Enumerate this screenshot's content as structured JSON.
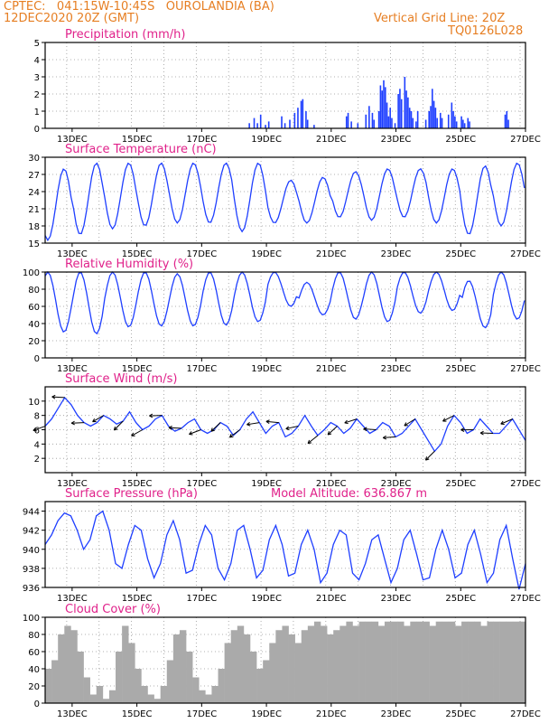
{
  "header": {
    "line1_left": "CPTEC:   041:15W-10:45S   OUROLANDIA (BA)",
    "line2_left": "12DEC2020 20Z (GMT)",
    "line1_right": "Vertical Grid Line: 20Z",
    "line2_right": "TQ0126L028"
  },
  "colors": {
    "header": "#e67e22",
    "title": "#e0218a",
    "series": "#1f3fff",
    "cloud": "#aaaaaa",
    "wind_arrow": "#000000"
  },
  "chart_data": [
    {
      "type": "bar",
      "title": "Precipitation (mm/h)",
      "x_ticks": [
        "13DEC",
        "15DEC",
        "17DEC",
        "19DEC",
        "21DEC",
        "23DEC",
        "25DEC",
        "27DEC"
      ],
      "ylim": [
        0,
        5
      ],
      "y_ticks": [
        0,
        1,
        2,
        3,
        4,
        5
      ],
      "grid": true,
      "values": [
        [
          5.95,
          0.3
        ],
        [
          6.1,
          0.6
        ],
        [
          6.2,
          0.3
        ],
        [
          6.3,
          0.8
        ],
        [
          6.45,
          0.2
        ],
        [
          6.55,
          0.4
        ],
        [
          6.95,
          0.7
        ],
        [
          7.05,
          0.3
        ],
        [
          7.2,
          0.5
        ],
        [
          7.35,
          0.9
        ],
        [
          7.45,
          1.2
        ],
        [
          7.55,
          1.6
        ],
        [
          7.6,
          1.7
        ],
        [
          7.7,
          1.0
        ],
        [
          7.75,
          0.5
        ],
        [
          7.95,
          0.2
        ],
        [
          8.95,
          0.7
        ],
        [
          9.0,
          0.9
        ],
        [
          9.1,
          0.4
        ],
        [
          9.3,
          0.3
        ],
        [
          9.55,
          0.8
        ],
        [
          9.65,
          1.3
        ],
        [
          9.75,
          0.9
        ],
        [
          9.8,
          0.5
        ],
        [
          9.95,
          1.0
        ],
        [
          10.0,
          2.5
        ],
        [
          10.05,
          2.2
        ],
        [
          10.1,
          2.8
        ],
        [
          10.15,
          2.4
        ],
        [
          10.2,
          1.5
        ],
        [
          10.25,
          0.7
        ],
        [
          10.3,
          1.2
        ],
        [
          10.35,
          0.6
        ],
        [
          10.45,
          0.3
        ],
        [
          10.55,
          2.0
        ],
        [
          10.6,
          2.3
        ],
        [
          10.65,
          1.7
        ],
        [
          10.75,
          3.0
        ],
        [
          10.8,
          2.2
        ],
        [
          10.85,
          1.8
        ],
        [
          10.9,
          1.2
        ],
        [
          10.95,
          1.0
        ],
        [
          11.0,
          0.6
        ],
        [
          11.1,
          0.4
        ],
        [
          11.15,
          1.0
        ],
        [
          11.4,
          0.5
        ],
        [
          11.5,
          1.0
        ],
        [
          11.55,
          1.3
        ],
        [
          11.6,
          2.3
        ],
        [
          11.65,
          1.6
        ],
        [
          11.7,
          1.2
        ],
        [
          11.75,
          0.6
        ],
        [
          11.85,
          0.9
        ],
        [
          11.9,
          0.6
        ],
        [
          12.1,
          0.8
        ],
        [
          12.2,
          1.5
        ],
        [
          12.25,
          1.0
        ],
        [
          12.3,
          0.7
        ],
        [
          12.35,
          0.4
        ],
        [
          12.5,
          0.7
        ],
        [
          12.55,
          0.5
        ],
        [
          12.6,
          0.3
        ],
        [
          12.7,
          0.6
        ],
        [
          12.75,
          0.4
        ],
        [
          13.85,
          0.8
        ],
        [
          13.9,
          1.0
        ],
        [
          13.95,
          0.5
        ]
      ]
    },
    {
      "type": "line",
      "title": "Surface Temperature (nC)",
      "x_ticks": [
        "13DEC",
        "15DEC",
        "17DEC",
        "19DEC",
        "21DEC",
        "23DEC",
        "25DEC",
        "27DEC"
      ],
      "ylim": [
        15,
        30
      ],
      "y_ticks": [
        15,
        18,
        21,
        24,
        27,
        30
      ],
      "grid": true,
      "series": [
        {
          "name": "",
          "min": [
            15.5,
            16.5,
            17.5,
            18.0,
            18.5,
            18.5,
            17.0,
            18.5,
            18.5,
            19.5,
            19.0,
            19.5,
            18.5,
            16.5,
            18.0
          ],
          "max": [
            28.0,
            29.0,
            29.0,
            29.0,
            29.0,
            29.0,
            29.0,
            26.0,
            26.5,
            27.5,
            28.0,
            28.0,
            28.0,
            28.5,
            29.0
          ]
        }
      ]
    },
    {
      "type": "line",
      "title": "Relative Humidity (%)",
      "x_ticks": [
        "13DEC",
        "15DEC",
        "17DEC",
        "19DEC",
        "21DEC",
        "23DEC",
        "25DEC",
        "27DEC"
      ],
      "ylim": [
        0,
        100
      ],
      "y_ticks": [
        0,
        20,
        40,
        60,
        80,
        100
      ],
      "grid": true,
      "series": [
        {
          "name": "",
          "max": [
            100,
            100,
            100,
            100,
            98,
            100,
            100,
            100,
            88,
            100,
            100,
            100,
            100,
            90,
            100
          ],
          "min": [
            30,
            28,
            36,
            37,
            37,
            38,
            42,
            60,
            50,
            45,
            42,
            52,
            55,
            35,
            45
          ]
        }
      ]
    },
    {
      "type": "line",
      "title": "Surface Wind (m/s)",
      "x_ticks": [
        "13DEC",
        "15DEC",
        "17DEC",
        "19DEC",
        "21DEC",
        "23DEC",
        "25DEC",
        "27DEC"
      ],
      "ylim": [
        0,
        12
      ],
      "y_ticks": [
        2,
        4,
        6,
        8,
        10
      ],
      "grid": true,
      "series": [
        {
          "name": "",
          "values": [
            6.5,
            7.5,
            9.0,
            10.5,
            9.5,
            8.0,
            7.0,
            6.5,
            7.0,
            8.0,
            7.5,
            6.8,
            7.2,
            8.5,
            7.0,
            6.0,
            6.5,
            7.5,
            8.0,
            6.5,
            5.8,
            6.2,
            7.0,
            7.5,
            6.0,
            5.5,
            6.0,
            7.0,
            6.5,
            5.2,
            6.0,
            7.5,
            8.5,
            7.0,
            5.5,
            6.5,
            7.0,
            5.0,
            5.5,
            6.5,
            8.0,
            6.5,
            5.2,
            6.0,
            7.0,
            6.5,
            5.5,
            6.2,
            7.5,
            6.5,
            5.5,
            6.0,
            7.0,
            6.5,
            5.0,
            5.5,
            6.5,
            7.5,
            6.0,
            4.5,
            3.0,
            4.0,
            6.5,
            8.0,
            7.0,
            5.5,
            6.0,
            7.5,
            6.5,
            5.5,
            5.5,
            6.5,
            7.5,
            6.0,
            4.5
          ]
        }
      ],
      "arrows": "wind-barbs"
    },
    {
      "type": "line",
      "title": "Surface Pressure (hPa)",
      "annotation": "Model Altitude: 636.867 m",
      "x_ticks": [
        "13DEC",
        "15DEC",
        "17DEC",
        "19DEC",
        "21DEC",
        "23DEC",
        "25DEC",
        "27DEC"
      ],
      "ylim": [
        936,
        945
      ],
      "y_ticks": [
        936,
        938,
        940,
        942,
        944
      ],
      "grid": true,
      "series": [
        {
          "name": "",
          "values": [
            940.5,
            941.5,
            943.0,
            943.8,
            943.5,
            942.0,
            940.0,
            941.0,
            943.5,
            944.0,
            942.0,
            938.5,
            938.0,
            940.5,
            942.5,
            942.0,
            939.0,
            937.0,
            938.5,
            941.5,
            943.0,
            941.0,
            937.5,
            937.8,
            940.5,
            942.5,
            941.5,
            938.0,
            936.8,
            938.5,
            942.0,
            942.5,
            940.0,
            937.0,
            937.8,
            941.0,
            942.5,
            940.5,
            937.2,
            937.5,
            940.5,
            942.0,
            940.0,
            936.5,
            937.5,
            940.5,
            942.0,
            941.5,
            937.5,
            936.8,
            938.5,
            941.0,
            941.5,
            939.0,
            936.5,
            938.0,
            941.0,
            942.0,
            939.5,
            936.8,
            937.0,
            940.0,
            942.0,
            940.0,
            937.0,
            937.5,
            940.5,
            942.0,
            939.5,
            936.5,
            937.5,
            941.0,
            942.5,
            939.0,
            935.8,
            938.5
          ]
        }
      ]
    },
    {
      "type": "area",
      "title": "Cloud Cover (%)",
      "x_ticks": [
        "13DEC",
        "15DEC",
        "17DEC",
        "19DEC",
        "21DEC",
        "23DEC",
        "25DEC",
        "27DEC"
      ],
      "ylim": [
        0,
        100
      ],
      "y_ticks": [
        0,
        20,
        40,
        60,
        80,
        100
      ],
      "grid": true,
      "series": [
        {
          "name": "",
          "values": [
            40,
            50,
            80,
            90,
            85,
            60,
            30,
            10,
            20,
            5,
            15,
            60,
            90,
            70,
            40,
            20,
            10,
            5,
            20,
            50,
            80,
            85,
            60,
            30,
            15,
            10,
            20,
            40,
            70,
            85,
            90,
            80,
            60,
            40,
            50,
            70,
            85,
            90,
            80,
            70,
            85,
            90,
            95,
            90,
            80,
            85,
            90,
            95,
            90,
            95,
            95,
            95,
            90,
            95,
            95,
            95,
            90,
            95,
            95,
            95,
            90,
            95,
            95,
            95,
            90,
            95,
            95,
            95,
            90,
            95,
            95,
            95,
            95,
            95,
            95
          ]
        }
      ]
    }
  ]
}
